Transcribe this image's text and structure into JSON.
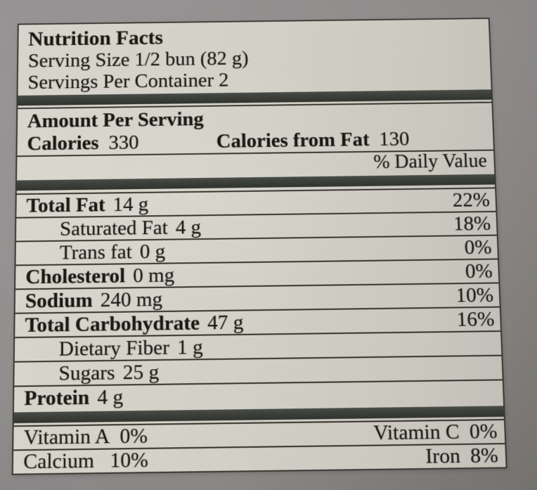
{
  "colors": {
    "photo_bg": "#8d8a89",
    "label_bg": "#d3d0c7",
    "label_bg_edge": "#c2bfb8",
    "bar": "#3f423c",
    "line": "#37342e",
    "border": "#3b3933",
    "text": "#1b1712"
  },
  "label": {
    "title": "Nutrition Facts",
    "serving_size": "Serving Size 1/2 bun (82 g)",
    "servings_per_container": "Servings Per Container 2",
    "amount_per_serving": "Amount Per Serving",
    "calories": {
      "label": "Calories",
      "value": "330"
    },
    "calories_from_fat": {
      "label": "Calories from Fat",
      "value": "130"
    },
    "daily_value_header": "% Daily Value",
    "nutrients": [
      {
        "name": "Total Fat",
        "amount": "14 g",
        "daily_value": "22%"
      },
      {
        "name": "Saturated Fat",
        "amount": "4 g",
        "daily_value": "18%"
      },
      {
        "name": "Trans fat",
        "amount": "0 g",
        "daily_value": "0%"
      },
      {
        "name": "Cholesterol",
        "amount": "0 mg",
        "daily_value": "0%"
      },
      {
        "name": "Sodium",
        "amount": "240 mg",
        "daily_value": "10%"
      },
      {
        "name": "Total Carbohydrate",
        "amount": "47 g",
        "daily_value": "16%"
      },
      {
        "name": "Dietary Fiber",
        "amount": "1 g",
        "daily_value": ""
      },
      {
        "name": "Sugars",
        "amount": "25 g",
        "daily_value": ""
      },
      {
        "name": "Protein",
        "amount": "4 g",
        "daily_value": ""
      }
    ],
    "micronutrients": [
      {
        "left": {
          "name": "Vitamin A",
          "value": "0%"
        },
        "right": {
          "name": "Vitamin C",
          "value": "0%"
        }
      },
      {
        "left": {
          "name": "Calcium",
          "value": "10%"
        },
        "right": {
          "name": "Iron",
          "value": "8%"
        }
      }
    ]
  }
}
